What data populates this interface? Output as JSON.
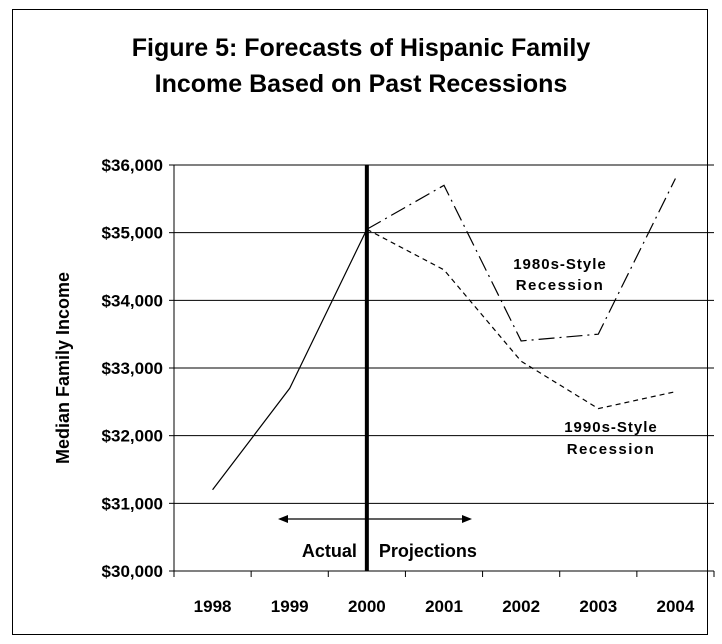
{
  "chart_data": {
    "type": "line",
    "title_line1": "Figure 5: Forecasts of Hispanic Family",
    "title_line2": "Income Based on Past Recessions",
    "ylabel": "Median Family Income",
    "xlabel": "",
    "x": [
      "1998",
      "1999",
      "2000",
      "2001",
      "2002",
      "2003",
      "2004"
    ],
    "ylim": [
      30000,
      36000
    ],
    "yticks": [
      30000,
      31000,
      32000,
      33000,
      34000,
      35000,
      36000
    ],
    "ytick_labels": [
      "$30,000",
      "$31,000",
      "$32,000",
      "$33,000",
      "$34,000",
      "$35,000",
      "$36,000"
    ],
    "grid": "horizontal",
    "series": [
      {
        "style": "solid",
        "x": [
          "1998",
          "1999",
          "2000"
        ],
        "values": [
          31200,
          32700,
          35050
        ]
      },
      {
        "style": "dash-dot",
        "x": [
          "2000",
          "2001",
          "2002",
          "2003",
          "2004"
        ],
        "values": [
          35050,
          35700,
          33400,
          33500,
          35800
        ]
      },
      {
        "style": "dashed",
        "x": [
          "2000",
          "2001",
          "2002",
          "2003",
          "2004"
        ],
        "values": [
          35050,
          34450,
          33100,
          32400,
          32650
        ]
      }
    ],
    "divider_at": "2000",
    "annotations": {
      "recession_1980_line1": "1980s-Style",
      "recession_1980_line2": "Recession",
      "recession_1990_line1": "1990s-Style",
      "recession_1990_line2": "Recession",
      "actual": "Actual",
      "projections": "Projections"
    }
  }
}
